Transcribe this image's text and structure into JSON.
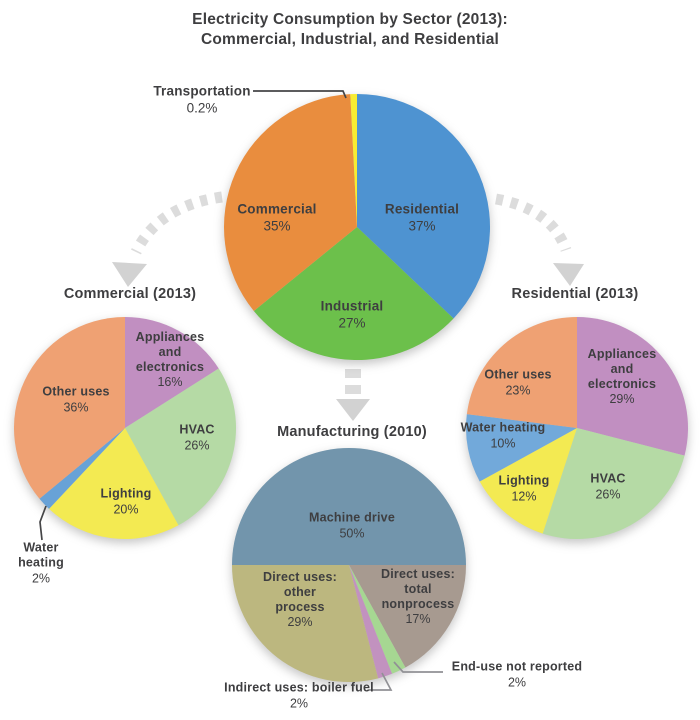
{
  "page_title": {
    "line1": "Electricity Consumption by Sector (2013):",
    "line2": "Commercial, Industrial, and Residential"
  },
  "palette": {
    "arrow_dash": "#dcdcdc",
    "arrow_head": "#d2d2d2",
    "leader_dark": "#454547",
    "leader_gray": "#919195",
    "text": "#3e3e40",
    "background": "#ffffff"
  },
  "chart_data": [
    {
      "id": "main",
      "type": "pie",
      "title": "",
      "slices": [
        {
          "label": "Residential",
          "pct_label": "37%",
          "value": 37,
          "color": "#4e93d1"
        },
        {
          "label": "Industrial",
          "pct_label": "27%",
          "value": 27,
          "color": "#6cc04b"
        },
        {
          "label": "Commercial",
          "pct_label": "35%",
          "value": 35,
          "color": "#e98d3e"
        },
        {
          "label": "Transportation",
          "pct_label": "0.2%",
          "value": 0.2,
          "display_value": 0.8,
          "color": "#f8ec32"
        }
      ]
    },
    {
      "id": "commercial",
      "type": "pie",
      "title": "Commercial (2013)",
      "slices": [
        {
          "label": "Appliances and electronics",
          "display": "Appliances\nand\nelectronics",
          "pct_label": "16%",
          "value": 16,
          "color": "#c18fc1"
        },
        {
          "label": "HVAC",
          "pct_label": "26%",
          "value": 26,
          "color": "#b5daa5"
        },
        {
          "label": "Lighting",
          "pct_label": "20%",
          "value": 20,
          "color": "#f3ea52"
        },
        {
          "label": "Water heating",
          "display": "Water\nheating",
          "pct_label": "2%",
          "value": 2,
          "color": "#68a2d7"
        },
        {
          "label": "Other uses",
          "pct_label": "36%",
          "value": 36,
          "color": "#efa173"
        }
      ]
    },
    {
      "id": "residential",
      "type": "pie",
      "title": "Residential (2013)",
      "slices": [
        {
          "label": "Appliances and electronics",
          "display": "Appliances\nand\nelectronics",
          "pct_label": "29%",
          "value": 29,
          "color": "#c18fc1"
        },
        {
          "label": "HVAC",
          "pct_label": "26%",
          "value": 26,
          "color": "#b5daa5"
        },
        {
          "label": "Lighting",
          "pct_label": "12%",
          "value": 12,
          "color": "#f3ea52"
        },
        {
          "label": "Water heating",
          "pct_label": "10%",
          "value": 10,
          "color": "#72a9da"
        },
        {
          "label": "Other uses",
          "pct_label": "23%",
          "value": 23,
          "color": "#efa173"
        }
      ]
    },
    {
      "id": "manufacturing",
      "type": "pie",
      "title": "Manufacturing (2010)",
      "slices": [
        {
          "label": "Machine drive",
          "pct_label": "50%",
          "value": 50,
          "color": "#7295ac"
        },
        {
          "label": "Direct uses: total nonprocess",
          "display": "Direct uses:\ntotal\nnonprocess",
          "pct_label": "17%",
          "value": 17,
          "color": "#a79a90"
        },
        {
          "label": "End-use not reported",
          "pct_label": "2%",
          "value": 2,
          "color": "#a6d792"
        },
        {
          "label": "Indirect uses: boiler fuel",
          "pct_label": "2%",
          "value": 2,
          "color": "#c292bf"
        },
        {
          "label": "Direct uses: other process",
          "display": "Direct uses:\nother\nprocess",
          "pct_label": "29%",
          "value": 29,
          "color": "#bcb77f"
        }
      ]
    }
  ]
}
